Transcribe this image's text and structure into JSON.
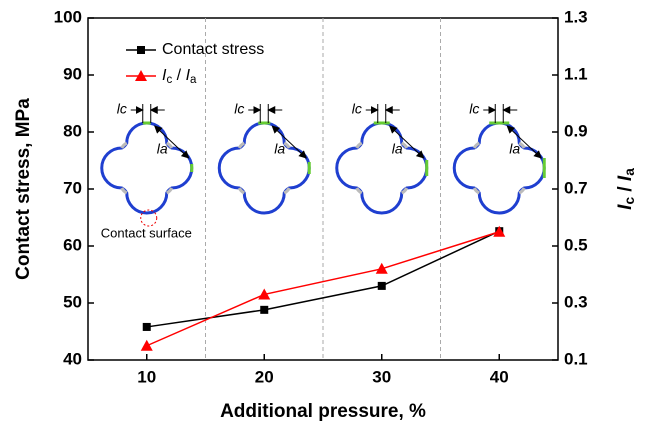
{
  "chart_data": {
    "type": "line",
    "x_label": "Additional pressure, %",
    "y_label": "Contact stress, MPa",
    "y2_label": "Ic / Ia",
    "x": [
      10,
      20,
      30,
      40
    ],
    "xlim": [
      5,
      45
    ],
    "xticks": [
      10,
      20,
      30,
      40
    ],
    "ylim": [
      40,
      100
    ],
    "yticks": [
      40,
      50,
      60,
      70,
      80,
      90,
      100
    ],
    "y2lim": [
      0.1,
      1.3
    ],
    "y2ticks": [
      0.1,
      0.3,
      0.5,
      0.7,
      0.9,
      1.1,
      1.3
    ],
    "separators": [
      15,
      25,
      35
    ],
    "series": [
      {
        "name": "Contact stress",
        "color": "#000000",
        "marker": "square",
        "values": [
          45.8,
          48.8,
          53.0,
          62.6
        ]
      },
      {
        "name": "Ic / Ia",
        "color": "#ff0000",
        "marker": "triangle",
        "axis": "y2",
        "values": [
          0.15,
          0.33,
          0.42,
          0.55
        ]
      }
    ],
    "annotations": {
      "lc": "lc",
      "la": "la",
      "contact_surface": "Contact surface"
    }
  }
}
